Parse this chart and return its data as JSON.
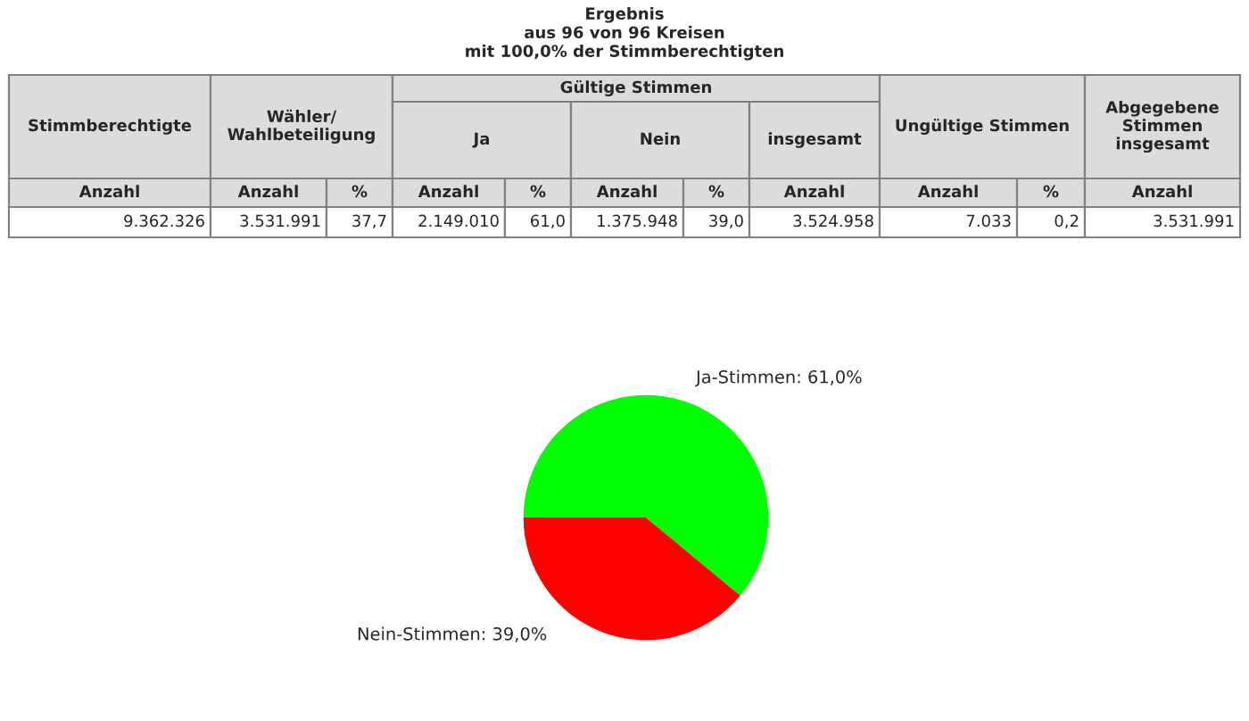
{
  "chart_data": {
    "type": "pie",
    "title": "Ergebnis\naus 96 von 96 Kreisen\nmit 100,0% der Stimmberechtigten",
    "categories": [
      "Ja-Stimmen",
      "Nein-Stimmen"
    ],
    "values": [
      61.0,
      39.0
    ],
    "colors": [
      "#00ff00",
      "#ff0000"
    ],
    "value_labels": [
      "61,0%",
      "39,0%"
    ],
    "legend": false,
    "annotations": [
      "Stimmberechtigte",
      "Wähler/\nWahlbeteiligung",
      "Gültige Stimmen",
      "Ja",
      "Nein",
      "insgesamt",
      "Ungültige Stimmen",
      "Abgegebene\nStimmen\ninsgesamt",
      "Anzahl",
      "Anzahl",
      "%",
      "Anzahl",
      "%",
      "Anzahl",
      "%",
      "Anzahl",
      "Anzahl",
      "%",
      "Anzahl",
      "9.362.326",
      "3.531.991",
      "37,7",
      "2.149.010",
      "61,0",
      "1.375.948",
      "39,0",
      "3.524.958",
      "7.033",
      "0,2",
      "3.531.991"
    ]
  }
}
